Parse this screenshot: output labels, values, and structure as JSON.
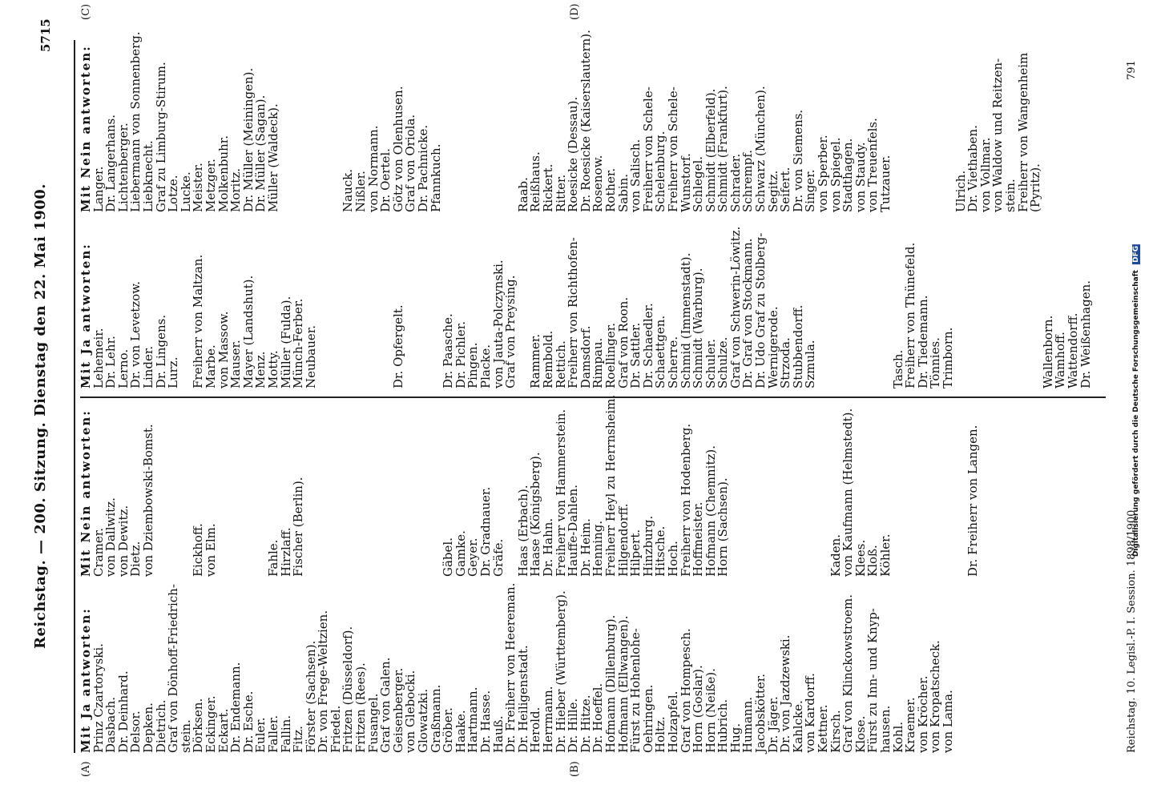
{
  "header": {
    "page_number": "5715",
    "title": "Reichstag. — 200. Sitzung.    Dienstag den 22. Mai 1900."
  },
  "side_note": "Digitalisierung gefördert durch die Deutsche Forschungsgemeinschaft",
  "side_logo": "DFG",
  "markers": {
    "a": "(A)",
    "b": "(B)",
    "c": "(C)",
    "d": "(D)"
  },
  "footer_left": "Reichstag.  10. Legisl.-P.  I. Session.  1898/1900.",
  "footer_right": "791",
  "columns": {
    "col1_heading": "Mit Ja antworten:",
    "col1": [
      "Prinz Czartoryski.",
      "Dasbach.",
      "Dr. Deinhard.",
      "Delsor.",
      "Depken.",
      "Dietrich.",
      "Graf von Dönhoff-Friedrich-",
      "stein.",
      "Dörksen.",
      "Eckinger.",
      "Eckart.",
      "Dr. Endemann.",
      "Dr. Esche.",
      "Euler.",
      "Faller.",
      "Fallin.",
      "Fitz.",
      "Förster (Sachsen).",
      "Dr. von Frege-Weltzien.",
      "Friedel.",
      "Fritzen (Düsseldorf).",
      "Fritzen (Rees).",
      "Fusangel.",
      "Graf von Galen.",
      "Geisenberger.",
      "von Glebocki.",
      "Glowatzki.",
      "Graßmann.",
      "Gröber.",
      "Haake.",
      "Hartmann.",
      "Dr. Hasse.",
      "Hauß.",
      "Dr. Freiherr von Heereman.",
      "Dr. Heiligenstadt.",
      "Herold.",
      "Herrmann.",
      "Dr. Hieber (Württemberg).",
      "Dr. Hille.",
      "Dr. Hitze.",
      "Dr. Hoeffel.",
      "Hofmann (Dillenburg).",
      "Hofmann (Ellwangen).",
      "Fürst zu Hohenlohe-",
      "Oehringen.",
      "Holtz.",
      "Holzapfel.",
      "Graf von Hompesch.",
      "Horn (Goslar).",
      "Horn (Neiße).",
      "Hubrich.",
      "Hug.",
      "Humann.",
      "Jacobskötter.",
      "Dr. Jäger.",
      "Dr. von Jazdzewski.",
      "Kahlcke.",
      "von Kardorff.",
      "Kettner.",
      "Kirsch.",
      "Graf von Klinckowstroem.",
      "Klose.",
      "Fürst zu Inn- und Knyp-",
      "hausen.",
      "Kohl.",
      "Kraemer.",
      "von Kröcher.",
      "von Kropatscheck.",
      "von Lama."
    ],
    "col2_heading": "Mit Nein antworten:",
    "col2": [
      "Cramer.",
      "von Dallwitz.",
      "von Dewitz.",
      "Dietz.",
      "von Dziembowski-Bomst.",
      "",
      "",
      "",
      "Eickhoff.",
      "von Elm.",
      "",
      "",
      "",
      "",
      "Fahle.",
      "Hirzlaff.",
      "Fischer (Berlin).",
      "",
      "",
      "",
      "",
      "",
      "",
      "",
      "",
      "",
      "",
      "",
      "Gäbel.",
      "Gamke.",
      "Geyer.",
      "Dr. Gradnauer.",
      "Gräfe.",
      "",
      "Haas (Erbach).",
      "Haase (Königsberg).",
      "Dr. Hahn.",
      "Freiherr von Hammerstein.",
      "Hauffe-Dahlen.",
      "Dr. Heim.",
      "Henning.",
      "Freiherr Heyl zu Herrnsheim.",
      "Hilgendorff.",
      "Hilpert.",
      "Hinzburg.",
      "Hitsche.",
      "Hoch.",
      "Freiherr von Hodenberg.",
      "Hoffmeister.",
      "Hofmann (Chemnitz).",
      "Horn (Sachsen).",
      "",
      "",
      "",
      "",
      "",
      "",
      "",
      "",
      "Kaden.",
      "von Kaufmann (Helmstedt).",
      "Klees.",
      "Kloß.",
      "Köhler.",
      "",
      "",
      "",
      "",
      "",
      "",
      "Dr. Freiherr von Langen."
    ],
    "col3_heading": "Mit Ja antworten:",
    "col3": [
      "Lehemeir.",
      "Dr. Lehr.",
      "Lerno.",
      "Dr. von Levetzow.",
      "Linder.",
      "Dr. Lingens.",
      "Lurz.",
      "",
      "Freiherr von Maltzan.",
      "Marbe.",
      "von Massow.",
      "Mauser.",
      "Mayer (Landshut).",
      "Menz.",
      "Motty.",
      "Müller (Fulda).",
      "Münch-Ferber.",
      "Neubauer.",
      "",
      "",
      "",
      "",
      "",
      "",
      "Dr. Opfergelt.",
      "",
      "",
      "",
      "Dr. Paasche.",
      "Dr. Pichler.",
      "Pingen.",
      "Placke.",
      "von Jauta-Polczynski.",
      "Graf von Preysing.",
      "",
      "Rammer.",
      "Rembold.",
      "Rettich.",
      "Freiherr von Richthofen-",
      "Damsdorf.",
      "Rimpau.",
      "Roellinger.",
      "Graf von Roon.",
      "Dr. Sattler.",
      "Dr. Schaedler.",
      "Schaettgen.",
      "Scherre.",
      "Schmid (Immenstadt).",
      "Schmidt (Warburg).",
      "Schuler.",
      "Schulze.",
      "Graf von Schwerin-Löwitz.",
      "Dr. Graf von Stockmann.",
      "Dr. Udo Graf zu Stolberg-",
      "Wernigerode.",
      "Strzoda.",
      "Stubbendorff.",
      "Szmula.",
      "",
      "",
      "",
      "",
      "",
      "",
      "Tasch.",
      "Freiherr von Thünefeld.",
      "Dr. Tiedemann.",
      "Tönnies.",
      "Trimborn.",
      "",
      "",
      "",
      "",
      "",
      "",
      "",
      "Wallenborn.",
      "Wamhoff.",
      "Wattendorff.",
      "Dr. Weißenhagen."
    ],
    "col4_heading": "Mit Nein antworten:",
    "col4": [
      "Langer.",
      "Dr. Langerhans.",
      "Lichtenberger.",
      "Liebermann von Sonnenberg.",
      "Liebknecht.",
      "Graf zu Limburg-Stirum.",
      "Lotze.",
      "Lucke.",
      "Meister.",
      "Metzger.",
      "Molkenbuhr.",
      "Moritz.",
      "Dr. Müller (Meiningen).",
      "Dr. Müller (Sagan).",
      "Müller (Waldeck).",
      "",
      "",
      "",
      "",
      "",
      "Nauck.",
      "Nißler.",
      "von Normann.",
      "Dr. Oertel.",
      "Götz von Olenhusen.",
      "Graf von Oriola.",
      "Dr. Pachnicke.",
      "Pfannkuch.",
      "",
      "",
      "",
      "",
      "",
      "",
      "Raab.",
      "Reißhaus.",
      "Rickert.",
      "Ritter.",
      "Roesicke (Dessau).",
      "Dr. Roesicke (Kaiserslautern).",
      "Rosenow.",
      "Rother.",
      "Sabin.",
      "von Salisch.",
      "Freiherr von Schele-",
      "Schelenburg.",
      "Freiherr von Schele-",
      "Wunstorf.",
      "Schlegel.",
      "Schmidt (Elberfeld).",
      "Schmidt (Frankfurt).",
      "Schrader.",
      "Schrempf.",
      "Schwarz (München).",
      "Segitz.",
      "Seifert.",
      "Dr. von Siemens.",
      "Singer.",
      "von Sperber.",
      "von Spiegel.",
      "Stadthagen.",
      "von Staudy.",
      "von Treuenfels.",
      "Tutzauer.",
      "",
      "",
      "",
      "",
      "",
      "Ulrich.",
      "Dr. Viethaben.",
      "von Vollmar.",
      "von Waldow und Reitzen-",
      "stein.",
      "Freiherr von Wangenheim",
      "(Pyritz)."
    ]
  }
}
